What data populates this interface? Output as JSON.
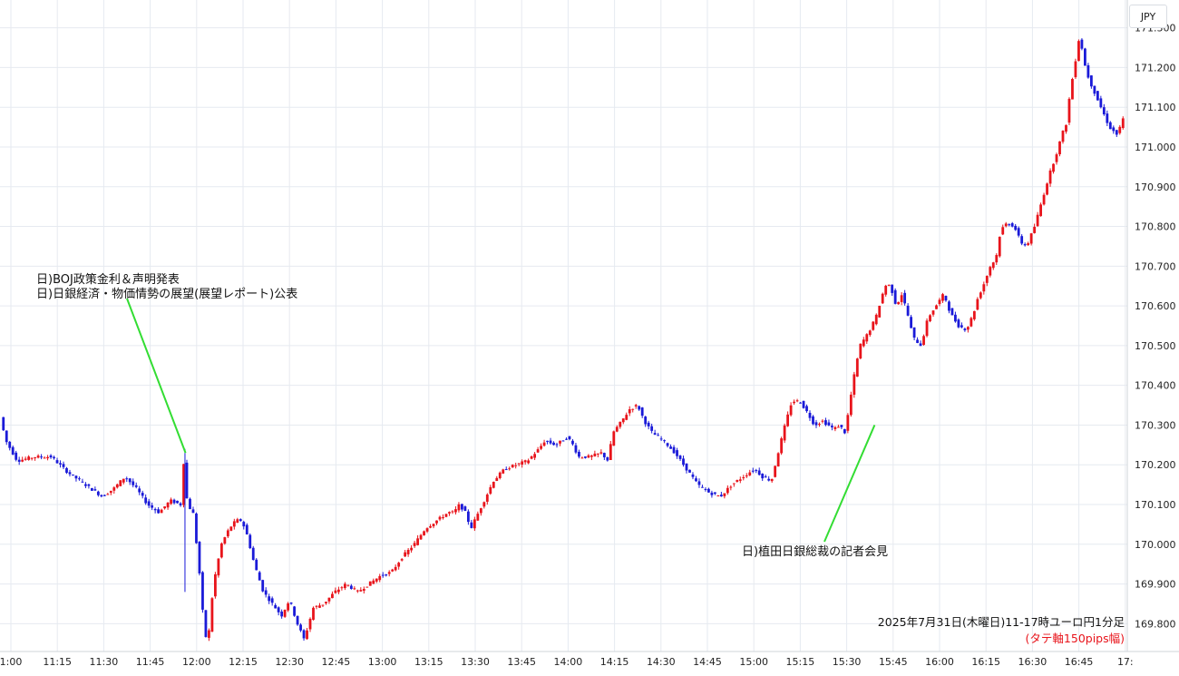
{
  "currency_label": "JPY",
  "chart_data": {
    "type": "candlestick",
    "x_ticks": [
      "1:00",
      "11:15",
      "11:30",
      "11:45",
      "12:00",
      "12:15",
      "12:30",
      "12:45",
      "13:00",
      "13:15",
      "13:30",
      "13:45",
      "14:00",
      "14:15",
      "14:30",
      "14:45",
      "15:00",
      "15:15",
      "15:30",
      "15:45",
      "16:00",
      "16:15",
      "16:30",
      "16:45",
      "17:"
    ],
    "y_ticks": [
      "169.800",
      "169.900",
      "170.000",
      "170.100",
      "170.200",
      "170.300",
      "170.400",
      "170.500",
      "170.600",
      "170.700",
      "170.800",
      "170.900",
      "171.000",
      "171.100",
      "171.200",
      "171.300"
    ],
    "ylim": [
      169.73,
      171.37
    ],
    "colors": {
      "up": "#e8141b",
      "down": "#1a1ad8",
      "grid": "#e6eaf0",
      "annotation_line": "#33dd33",
      "footer_note": "#e8141b"
    },
    "price_anchors": [
      [
        0,
        170.32
      ],
      [
        5,
        170.26
      ],
      [
        15,
        170.21
      ],
      [
        30,
        170.22
      ],
      [
        45,
        170.22
      ],
      [
        60,
        170.18
      ],
      [
        75,
        170.15
      ],
      [
        90,
        170.12
      ],
      [
        100,
        170.14
      ],
      [
        110,
        170.17
      ],
      [
        120,
        170.14
      ],
      [
        130,
        170.1
      ],
      [
        140,
        170.08
      ],
      [
        150,
        170.11
      ],
      [
        159,
        170.1
      ],
      [
        161,
        170.23
      ],
      [
        165,
        170.1
      ],
      [
        170,
        170.08
      ],
      [
        175,
        169.95
      ],
      [
        180,
        169.78
      ],
      [
        183,
        169.75
      ],
      [
        188,
        169.9
      ],
      [
        195,
        170.0
      ],
      [
        202,
        170.04
      ],
      [
        208,
        170.06
      ],
      [
        213,
        170.06
      ],
      [
        218,
        170.02
      ],
      [
        224,
        169.95
      ],
      [
        232,
        169.88
      ],
      [
        240,
        169.85
      ],
      [
        248,
        169.82
      ],
      [
        255,
        169.86
      ],
      [
        262,
        169.8
      ],
      [
        268,
        169.76
      ],
      [
        276,
        169.84
      ],
      [
        285,
        169.85
      ],
      [
        295,
        169.88
      ],
      [
        305,
        169.9
      ],
      [
        315,
        169.88
      ],
      [
        325,
        169.9
      ],
      [
        335,
        169.92
      ],
      [
        345,
        169.93
      ],
      [
        355,
        169.97
      ],
      [
        365,
        170.0
      ],
      [
        375,
        170.04
      ],
      [
        385,
        170.06
      ],
      [
        395,
        170.08
      ],
      [
        400,
        170.08
      ],
      [
        405,
        170.1
      ],
      [
        410,
        170.08
      ],
      [
        415,
        170.04
      ],
      [
        420,
        170.07
      ],
      [
        425,
        170.1
      ],
      [
        435,
        170.16
      ],
      [
        445,
        170.19
      ],
      [
        455,
        170.2
      ],
      [
        465,
        170.21
      ],
      [
        475,
        170.24
      ],
      [
        480,
        170.26
      ],
      [
        490,
        170.25
      ],
      [
        500,
        170.27
      ],
      [
        505,
        170.25
      ],
      [
        510,
        170.22
      ],
      [
        520,
        170.22
      ],
      [
        530,
        170.23
      ],
      [
        536,
        170.21
      ],
      [
        540,
        170.28
      ],
      [
        548,
        170.31
      ],
      [
        555,
        170.34
      ],
      [
        562,
        170.35
      ],
      [
        568,
        170.31
      ],
      [
        575,
        170.28
      ],
      [
        585,
        170.26
      ],
      [
        595,
        170.23
      ],
      [
        605,
        170.19
      ],
      [
        615,
        170.15
      ],
      [
        625,
        170.13
      ],
      [
        635,
        170.12
      ],
      [
        645,
        170.15
      ],
      [
        655,
        170.17
      ],
      [
        665,
        170.19
      ],
      [
        672,
        170.17
      ],
      [
        680,
        170.16
      ],
      [
        685,
        170.22
      ],
      [
        692,
        170.3
      ],
      [
        698,
        170.36
      ],
      [
        705,
        170.36
      ],
      [
        712,
        170.33
      ],
      [
        718,
        170.3
      ],
      [
        725,
        170.31
      ],
      [
        730,
        170.3
      ],
      [
        735,
        170.29
      ],
      [
        740,
        170.3
      ],
      [
        745,
        170.28
      ],
      [
        752,
        170.41
      ],
      [
        758,
        170.5
      ],
      [
        765,
        170.53
      ],
      [
        772,
        170.57
      ],
      [
        778,
        170.63
      ],
      [
        782,
        170.66
      ],
      [
        786,
        170.64
      ],
      [
        790,
        170.6
      ],
      [
        795,
        170.63
      ],
      [
        800,
        170.58
      ],
      [
        805,
        170.52
      ],
      [
        812,
        170.5
      ],
      [
        818,
        170.57
      ],
      [
        825,
        170.6
      ],
      [
        832,
        170.63
      ],
      [
        838,
        170.58
      ],
      [
        845,
        170.55
      ],
      [
        852,
        170.54
      ],
      [
        858,
        170.58
      ],
      [
        862,
        170.62
      ],
      [
        868,
        170.66
      ],
      [
        873,
        170.7
      ],
      [
        878,
        170.72
      ],
      [
        882,
        170.79
      ],
      [
        888,
        170.81
      ],
      [
        894,
        170.8
      ],
      [
        900,
        170.76
      ],
      [
        905,
        170.75
      ],
      [
        912,
        170.8
      ],
      [
        918,
        170.86
      ],
      [
        925,
        170.93
      ],
      [
        932,
        170.99
      ],
      [
        936,
        171.03
      ],
      [
        940,
        171.06
      ],
      [
        943,
        171.13
      ],
      [
        947,
        171.2
      ],
      [
        950,
        171.25
      ],
      [
        952,
        171.29
      ],
      [
        955,
        171.22
      ],
      [
        960,
        171.17
      ],
      [
        966,
        171.13
      ],
      [
        972,
        171.09
      ],
      [
        978,
        171.05
      ],
      [
        985,
        171.03
      ],
      [
        990,
        171.07
      ]
    ],
    "annotations": [
      {
        "lines": [
          "日)BOJ政策金利＆声明発表",
          "日)日銀経済・物価情勢の展望(展望レポート)公表"
        ],
        "time_min": 162,
        "price": 170.23
      },
      {
        "lines": [
          "日)植田日銀総裁の記者会見"
        ],
        "time_min": 768,
        "price": 170.3
      }
    ],
    "footer_title": "2025年7月31日(木曜日)11-17時ユーロ円1分足",
    "footer_note": "(タテ軸150pips幅)"
  }
}
